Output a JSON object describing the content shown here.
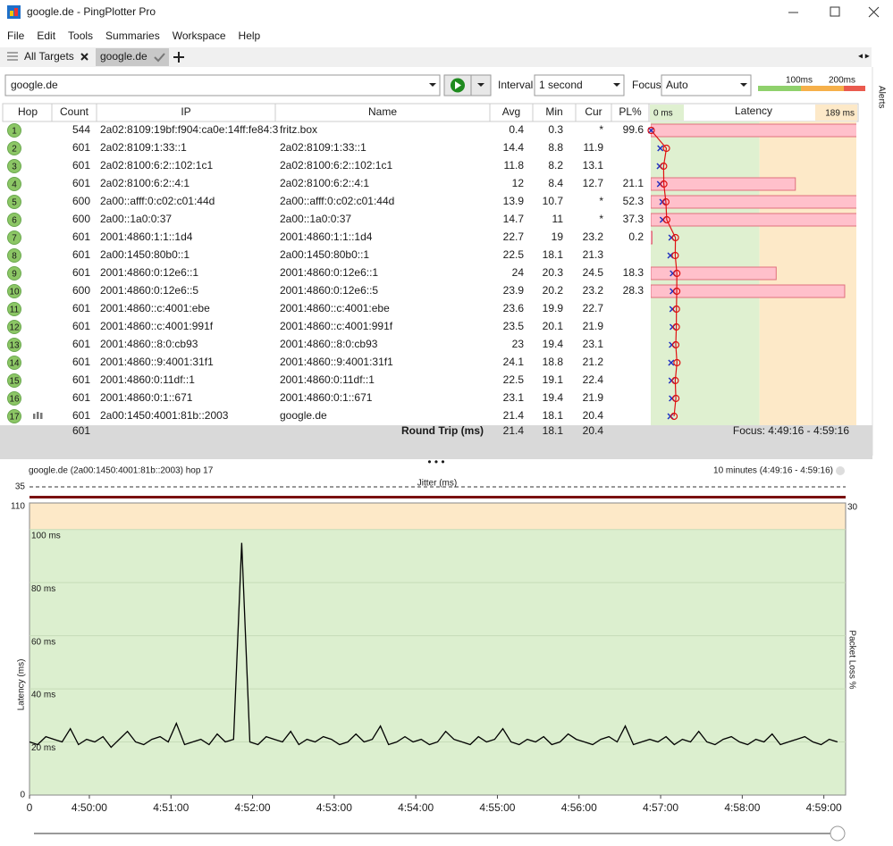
{
  "window": {
    "title": "google.de - PingPlotter Pro"
  },
  "menu": [
    "File",
    "Edit",
    "Tools",
    "Summaries",
    "Workspace",
    "Help"
  ],
  "tabs": [
    "All Targets",
    "google.de"
  ],
  "side_panel": "Alerts",
  "toolbar": {
    "target": "google.de",
    "interval_label": "Interval",
    "interval": "1 second",
    "focus_label": "Focus",
    "focus": "Auto",
    "thresholds": [
      {
        "value": 100,
        "label": "100ms"
      },
      {
        "value": 200,
        "label": "200ms"
      }
    ]
  },
  "table": {
    "columns": [
      "Hop",
      "Count",
      "IP",
      "Name",
      "Avg",
      "Min",
      "Cur",
      "PL%"
    ],
    "latency_title": "Latency",
    "latency_xlim": [
      0,
      189
    ],
    "latency_xticks": [
      {
        "value": 0,
        "label": "0 ms"
      },
      {
        "value": 189,
        "label": "189 ms"
      }
    ],
    "rows": [
      {
        "hop": 1,
        "count": 544,
        "ip": "2a02:8109:19bf:f904:ca0e:14ff:fe84:3",
        "name": "fritz.box",
        "avg": 0.4,
        "min": 0.3,
        "cur": "*",
        "pl": 99.6
      },
      {
        "hop": 2,
        "count": 601,
        "ip": "2a02:8109:1:33::1",
        "name": "2a02:8109:1:33::1",
        "avg": 14.4,
        "min": 8.8,
        "cur": 11.9,
        "pl": null
      },
      {
        "hop": 3,
        "count": 601,
        "ip": "2a02:8100:6:2::102:1c1",
        "name": "2a02:8100:6:2::102:1c1",
        "avg": 11.8,
        "min": 8.2,
        "cur": 13.1,
        "pl": null
      },
      {
        "hop": 4,
        "count": 601,
        "ip": "2a02:8100:6:2::4:1",
        "name": "2a02:8100:6:2::4:1",
        "avg": 12.0,
        "min": 8.4,
        "cur": 12.7,
        "pl": 21.1
      },
      {
        "hop": 5,
        "count": 600,
        "ip": "2a00::afff:0:c02:c01:44d",
        "name": "2a00::afff:0:c02:c01:44d",
        "avg": 13.9,
        "min": 10.7,
        "cur": "*",
        "pl": 52.3
      },
      {
        "hop": 6,
        "count": 600,
        "ip": "2a00::1a0:0:37",
        "name": "2a00::1a0:0:37",
        "avg": 14.7,
        "min": 11.0,
        "cur": "*",
        "pl": 37.3
      },
      {
        "hop": 7,
        "count": 601,
        "ip": "2001:4860:1:1::1d4",
        "name": "2001:4860:1:1::1d4",
        "avg": 22.7,
        "min": 19.0,
        "cur": 23.2,
        "pl": 0.2
      },
      {
        "hop": 8,
        "count": 601,
        "ip": "2a00:1450:80b0::1",
        "name": "2a00:1450:80b0::1",
        "avg": 22.5,
        "min": 18.1,
        "cur": 21.3,
        "pl": null
      },
      {
        "hop": 9,
        "count": 601,
        "ip": "2001:4860:0:12e6::1",
        "name": "2001:4860:0:12e6::1",
        "avg": 24.0,
        "min": 20.3,
        "cur": 24.5,
        "pl": 18.3
      },
      {
        "hop": 10,
        "count": 600,
        "ip": "2001:4860:0:12e6::5",
        "name": "2001:4860:0:12e6::5",
        "avg": 23.9,
        "min": 20.2,
        "cur": 23.2,
        "pl": 28.3
      },
      {
        "hop": 11,
        "count": 601,
        "ip": "2001:4860::c:4001:ebe",
        "name": "2001:4860::c:4001:ebe",
        "avg": 23.6,
        "min": 19.9,
        "cur": 22.7,
        "pl": null
      },
      {
        "hop": 12,
        "count": 601,
        "ip": "2001:4860::c:4001:991f",
        "name": "2001:4860::c:4001:991f",
        "avg": 23.5,
        "min": 20.1,
        "cur": 21.9,
        "pl": null
      },
      {
        "hop": 13,
        "count": 601,
        "ip": "2001:4860::8:0:cb93",
        "name": "2001:4860::8:0:cb93",
        "avg": 23.0,
        "min": 19.4,
        "cur": 23.1,
        "pl": null
      },
      {
        "hop": 14,
        "count": 601,
        "ip": "2001:4860::9:4001:31f1",
        "name": "2001:4860::9:4001:31f1",
        "avg": 24.1,
        "min": 18.8,
        "cur": 21.2,
        "pl": null
      },
      {
        "hop": 15,
        "count": 601,
        "ip": "2001:4860:0:11df::1",
        "name": "2001:4860:0:11df::1",
        "avg": 22.5,
        "min": 19.1,
        "cur": 22.4,
        "pl": null
      },
      {
        "hop": 16,
        "count": 601,
        "ip": "2001:4860:0:1::671",
        "name": "2001:4860:0:1::671",
        "avg": 23.1,
        "min": 19.4,
        "cur": 21.9,
        "pl": null
      },
      {
        "hop": 17,
        "count": 601,
        "ip": "2a00:1450:4001:81b::2003",
        "name": "google.de",
        "avg": 21.4,
        "min": 18.1,
        "cur": 20.4,
        "pl": null
      }
    ],
    "summary": {
      "count": 601,
      "label": "Round Trip (ms)",
      "avg": 21.4,
      "min": 18.1,
      "cur": 20.4,
      "focus": "Focus: 4:49:16 - 4:59:16"
    }
  },
  "graph": {
    "type": "line",
    "title": "google.de (2a00:1450:4001:81b::2003) hop 17",
    "range": "10 minutes (4:49:16 - 4:59:16)",
    "jitter": {
      "title": "Jitter (ms)",
      "ylim": [
        0,
        35
      ],
      "yticks": [
        35
      ]
    },
    "ylabel": "Latency (ms)",
    "y2label": "Packet Loss %",
    "ylim": [
      0,
      110
    ],
    "yticks": [
      0,
      110
    ],
    "grid_lines": [
      {
        "value": 100,
        "label": "100 ms"
      },
      {
        "value": 80,
        "label": "80 ms"
      },
      {
        "value": 60,
        "label": "60 ms"
      },
      {
        "value": 40,
        "label": "40 ms"
      },
      {
        "value": 20,
        "label": "20 ms"
      }
    ],
    "y2lim": [
      0,
      30
    ],
    "y2ticks": [
      30
    ],
    "xlim": [
      0,
      600
    ],
    "xticks": [
      0,
      {
        "value": 44,
        "label": "4:50:00"
      },
      {
        "value": 104,
        "label": "4:51:00"
      },
      {
        "value": 164,
        "label": "4:52:00"
      },
      {
        "value": 224,
        "label": "4:53:00"
      },
      {
        "value": 284,
        "label": "4:54:00"
      },
      {
        "value": 344,
        "label": "4:55:00"
      },
      {
        "value": 404,
        "label": "4:56:00"
      },
      {
        "value": 464,
        "label": "4:57:00"
      },
      {
        "value": 524,
        "label": "4:58:00"
      },
      {
        "value": 584,
        "label": "4:59:00"
      }
    ],
    "series": [
      {
        "color": "#000000",
        "x": [
          0,
          6,
          12,
          18,
          24,
          30,
          36,
          42,
          48,
          54,
          60,
          66,
          72,
          78,
          84,
          90,
          96,
          102,
          108,
          114,
          120,
          126,
          132,
          138,
          144,
          150,
          156,
          162,
          168,
          174,
          180,
          186,
          192,
          198,
          204,
          210,
          216,
          222,
          228,
          234,
          240,
          246,
          252,
          258,
          264,
          270,
          276,
          282,
          288,
          294,
          300,
          306,
          312,
          318,
          324,
          330,
          336,
          342,
          348,
          354,
          360,
          366,
          372,
          378,
          384,
          390,
          396,
          402,
          408,
          414,
          420,
          426,
          432,
          438,
          444,
          450,
          456,
          462,
          468,
          474,
          480,
          486,
          492,
          498,
          504,
          510,
          516,
          522,
          528,
          534,
          540,
          546,
          552,
          558,
          564,
          570,
          576,
          582,
          588,
          594
        ],
        "values": [
          20,
          19,
          22,
          21,
          20,
          25,
          19,
          21,
          20,
          22,
          18,
          21,
          24,
          20,
          19,
          21,
          22,
          20,
          27,
          19,
          20,
          21,
          19,
          23,
          20,
          21,
          95,
          20,
          19,
          22,
          21,
          20,
          24,
          19,
          21,
          20,
          22,
          21,
          19,
          20,
          23,
          20,
          21,
          26,
          19,
          20,
          22,
          20,
          21,
          19,
          20,
          24,
          21,
          20,
          19,
          22,
          20,
          21,
          25,
          20,
          19,
          21,
          20,
          22,
          19,
          20,
          23,
          21,
          20,
          19,
          21,
          22,
          20,
          26,
          19,
          20,
          21,
          20,
          22,
          19,
          21,
          20,
          24,
          20,
          19,
          21,
          22,
          20,
          19,
          21,
          20,
          23,
          19,
          20,
          21,
          22,
          20,
          19,
          21,
          20
        ]
      }
    ]
  }
}
